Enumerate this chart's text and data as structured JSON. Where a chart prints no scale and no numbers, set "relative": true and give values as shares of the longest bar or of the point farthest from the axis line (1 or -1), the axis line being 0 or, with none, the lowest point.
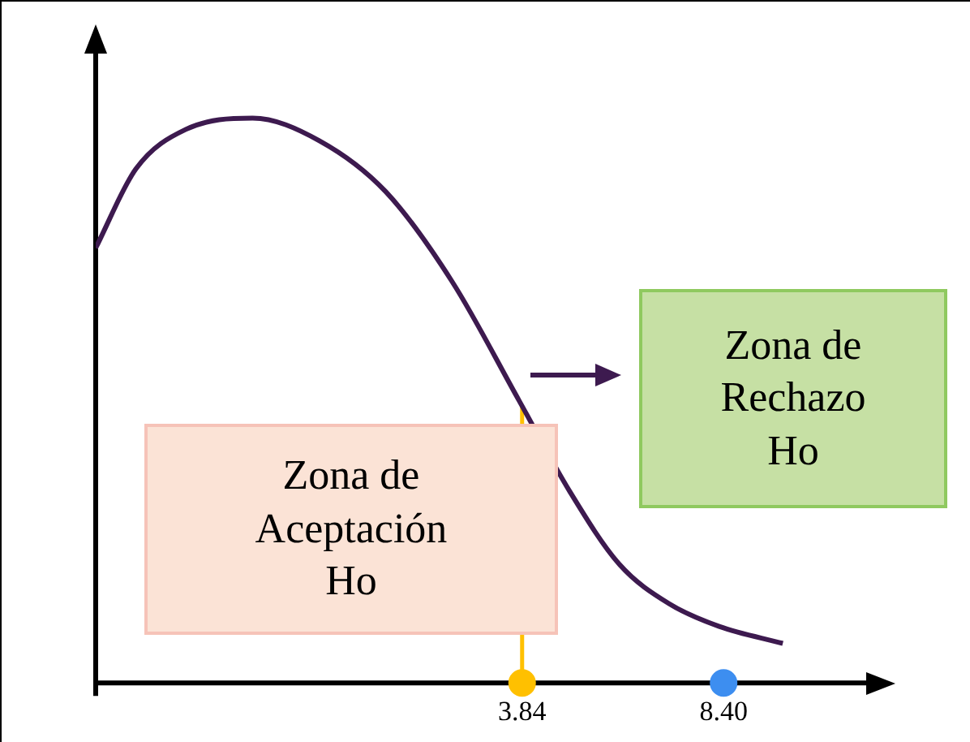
{
  "chart_data": {
    "type": "line",
    "relative": true,
    "xlim": [
      -5.81,
      11.7
    ],
    "xticks": [
      3.84,
      {
        "value": 8.4,
        "label": "8.40"
      }
    ],
    "grid": false,
    "legend": false,
    "series": [
      {
        "color": "#3d1a4f",
        "x": [
          -5.81,
          -4.9,
          -3.77,
          -2.26,
          -0.75,
          0.75,
          2.26,
          3.77,
          4.91,
          6.04,
          7.17,
          8.3,
          9.74
        ],
        "values": [
          0.77,
          0.91,
          0.98,
          1.0,
          0.96,
          0.87,
          0.71,
          0.5,
          0.34,
          0.21,
          0.14,
          0.1,
          0.07
        ],
        "marker": "none",
        "line_style": "solid"
      },
      {
        "type": "scatter",
        "x": [
          3.84,
          8.4
        ],
        "values": [
          0,
          0
        ],
        "colors": [
          "#ffc000",
          "#3d8ef0"
        ],
        "marker": "circle"
      }
    ],
    "ref_lines": [
      {
        "axis": "x",
        "value": 3.84,
        "color": "#ffc000",
        "line_style": "solid"
      }
    ],
    "annotations": [
      "Zona de\nAceptación\nHo",
      "Zona de\nRechazo\nHo"
    ]
  }
}
